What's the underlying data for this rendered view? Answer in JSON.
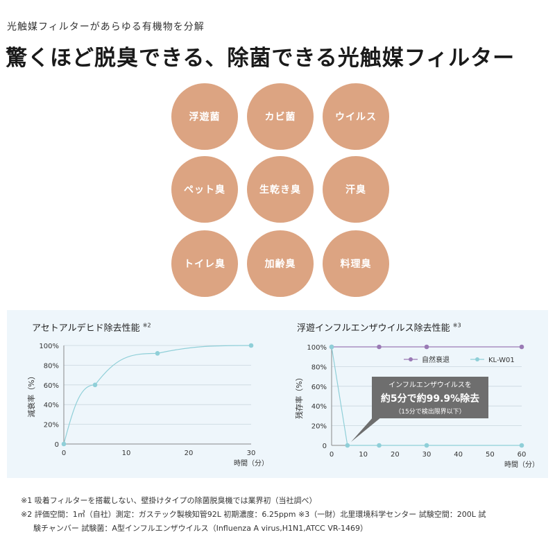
{
  "header": {
    "subtitle": "光触媒フィルターがあらゆる有機物を分解",
    "headline": "驚くほど脱臭できる、除菌できる光触媒フィルター"
  },
  "targets": [
    "浮遊菌",
    "カビ菌",
    "ウイルス",
    "ペット臭",
    "生乾き臭",
    "汗臭",
    "トイレ臭",
    "加齢臭",
    "料理臭"
  ],
  "colors": {
    "circle": "#dca482",
    "panel": "#eef6fb",
    "line_kl": "#8fcfd8",
    "line_natural": "#9a7ab5"
  },
  "chart_data": [
    {
      "type": "line",
      "title": "アセトアルデヒド除去性能",
      "title_note": "※2",
      "xlabel": "時間（分）",
      "ylabel": "減衰率（%）",
      "xticks": [
        "0",
        "10",
        "20",
        "30"
      ],
      "yticks": [
        "0",
        "20%",
        "40%",
        "60%",
        "80%",
        "100%"
      ],
      "xlim": [
        0,
        30
      ],
      "ylim": [
        0,
        100
      ],
      "series": [
        {
          "name": "減衰率",
          "x": [
            0,
            5,
            15,
            30
          ],
          "y": [
            0,
            60,
            92,
            100
          ]
        }
      ]
    },
    {
      "type": "line",
      "title": "浮遊インフルエンザウイルス除去性能",
      "title_note": "※3",
      "xlabel": "時間（分）",
      "ylabel": "残存率（%）",
      "xticks": [
        "0",
        "10",
        "20",
        "30",
        "40",
        "50",
        "60"
      ],
      "yticks": [
        "0",
        "20%",
        "40%",
        "60%",
        "80%",
        "100%"
      ],
      "xlim": [
        0,
        60
      ],
      "ylim": [
        0,
        100
      ],
      "legend": [
        "自然衰退",
        "KL-W01"
      ],
      "series": [
        {
          "name": "自然衰退",
          "x": [
            0,
            15,
            30,
            60
          ],
          "y": [
            100,
            100,
            100,
            100
          ]
        },
        {
          "name": "KL-W01",
          "x": [
            0,
            5,
            15,
            30,
            60
          ],
          "y": [
            100,
            0,
            0,
            0,
            0
          ]
        }
      ],
      "callout": {
        "line1": "インフルエンザウイルスを",
        "line2": "約5分で約99.9%除去",
        "line3": "（15分で検出限界以下）"
      }
    }
  ],
  "notes": {
    "n1": "※1 吸着フィルターを搭載しない、壁掛けタイプの除菌脱臭機では業界初（当社調べ）",
    "n2": "※2 評価空間：1㎥（自社）測定：ガステック製検知管92L 初期濃度：6.25ppm ※3（一財）北里環境科学センター 試験空間：200L 試",
    "n3": "験チャンバー 試験菌：A型インフルエンザウイルス（Influenza A virus,H1N1,ATCC VR-1469）"
  }
}
